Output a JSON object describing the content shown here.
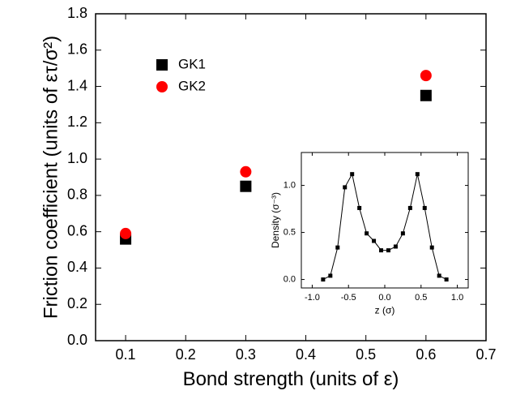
{
  "chart_data": [
    {
      "type": "scatter",
      "xlabel": "Bond strength (units of ε)",
      "ylabel": "Friction coefficient (units of ετ/σ²)",
      "x": [
        0.1,
        0.3,
        0.6
      ],
      "series": [
        {
          "name": "GK1",
          "color": "#000000",
          "marker": "square",
          "values": [
            0.56,
            0.85,
            1.35
          ]
        },
        {
          "name": "GK2",
          "color": "#ff0000",
          "marker": "circle",
          "values": [
            0.59,
            0.93,
            1.46
          ]
        }
      ],
      "xlim": [
        0.05,
        0.7
      ],
      "xticks": [
        0.1,
        0.2,
        0.3,
        0.4,
        0.5,
        0.6,
        0.7
      ],
      "ylim": [
        0,
        1.8
      ],
      "yticks": [
        {
          "value": 0,
          "label": "0.0"
        },
        0.2,
        0.4,
        0.6,
        0.8,
        {
          "value": 1,
          "label": "1.0"
        },
        1.2,
        1.4,
        1.6,
        1.8
      ],
      "legend": "upper left"
    },
    {
      "type": "line",
      "xlabel": "z (σ)",
      "ylabel": "Density (σ⁻³)",
      "x": [
        -0.85,
        -0.75,
        -0.65,
        -0.55,
        -0.45,
        -0.35,
        -0.25,
        -0.15,
        -0.05,
        0.05,
        0.15,
        0.25,
        0.35,
        0.45,
        0.55,
        0.65,
        0.75,
        0.85
      ],
      "series": [
        {
          "color": "#000000",
          "marker": "square",
          "values": [
            0.0,
            0.04,
            0.34,
            0.98,
            1.12,
            0.76,
            0.49,
            0.41,
            0.31,
            0.31,
            0.35,
            0.49,
            0.76,
            1.12,
            0.76,
            0.34,
            0.04,
            0.0
          ]
        }
      ],
      "xlim": [
        -1.15,
        1.15
      ],
      "xticks": [
        {
          "value": -1,
          "label": "-1.0"
        },
        -0.5,
        {
          "value": 0,
          "label": "0.0"
        },
        0.5,
        {
          "value": 1,
          "label": "1.0"
        }
      ],
      "ylim": [
        -0.09,
        1.35
      ],
      "yticks": [
        {
          "value": 0,
          "label": "0.0"
        },
        0.5,
        {
          "value": 1,
          "label": "1.0"
        }
      ]
    }
  ]
}
